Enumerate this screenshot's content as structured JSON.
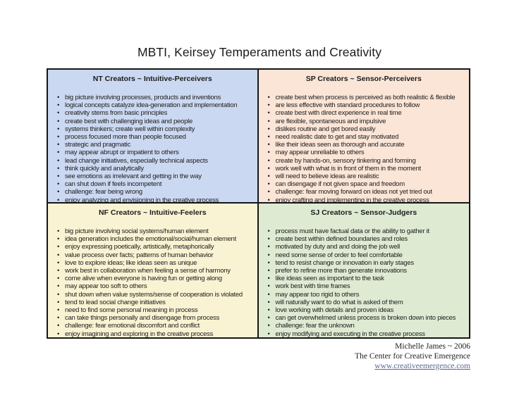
{
  "page": {
    "title": "MBTI, Keirsey Temperaments and Creativity"
  },
  "quadrants": [
    {
      "id": "nt",
      "header": "NT Creators ~ Intuitive-Perceivers",
      "bg": "#cbd8f1",
      "items": [
        "big picture involving processes, products and inventions",
        "logical concepts catalyze idea-generation and implementation",
        "creativity stems from basic principles",
        "create best with challenging ideas and people",
        "systems thinkers; create well within complexity",
        "process focused more than people focused",
        "strategic and pragmatic",
        "may appear abrupt or impatient to others",
        "lead change initiatives, especially technical aspects",
        "think quickly and analytically",
        "see emotions as irrelevant and getting in the way",
        "can shut down if feels incompetent",
        "challenge: fear being wrong",
        "enjoy analyzing and envisioning in the creative process"
      ]
    },
    {
      "id": "sp",
      "header": "SP Creators ~ Sensor-Perceivers",
      "bg": "#fbe5d7",
      "items": [
        "create best when process is perceived as both realistic & flexible",
        "are less effective with standard procedures to follow",
        "create best with direct experience in real time",
        "are flexible, spontaneous and impulsive",
        "dislikes routine and get bored easily",
        "need realistic date to get and stay motivated",
        "like their ideas seen as thorough and accurate",
        "may appear unreliable to others",
        "create by hands-on, sensory tinkering and forming",
        "work well with what is in front of them in the moment",
        "will need to believe ideas are realistic",
        "can disengage if not given space and freedom",
        "challenge: fear moving forward on ideas not yet tried out",
        "enjoy crafting and implementing in the creative process"
      ]
    },
    {
      "id": "nf",
      "header": "NF Creators ~ Intuitive-Feelers",
      "bg": "#faf3d3",
      "items": [
        "big picture involving social systems/human element",
        "idea generation includes the emotional/social/human element",
        "enjoy expressing poetically, artistically, metaphorically",
        "value process over facts; patterns of human behavior",
        "love to explore ideas; like ideas seen as unique",
        "work best in collaboration when feeling a sense of harmony",
        "come alive when everyone is having fun or getting along",
        "may appear too soft to others",
        "shut down when value systems/sense of cooperation is violated",
        "tend to lead social change initiatives",
        "need to find some personal meaning in process",
        "can take things personally and disengage from process",
        "challenge: fear emotional discomfort and conflict",
        "enjoy imagining and exploring in the creative process"
      ]
    },
    {
      "id": "sj",
      "header": "SJ Creators ~ Sensor-Judgers",
      "bg": "#dfead3",
      "items": [
        "process must have factual data or the ability to gather it",
        "create best within defined boundaries and roles",
        "motivated by duty and and doing the job well",
        "need some sense of order to feel comfortable",
        "tend to resist change or innovation in early stages",
        "prefer to refine more than generate innovations",
        "like ideas seen as important to the task",
        "work best with time frames",
        "may appear too rigid to others",
        "will naturally want to do what is asked of them",
        "love working with details and proven ideas",
        "can get overwhelmed unless process is broken down into pieces",
        "challenge: fear the unknown",
        "enjoy modifying and executing in the creative process"
      ]
    }
  ],
  "footer": {
    "line1": "Michelle James ~ 2006",
    "line2": "The Center for Creative Emergence",
    "link": "www.creativeemergence.com"
  }
}
